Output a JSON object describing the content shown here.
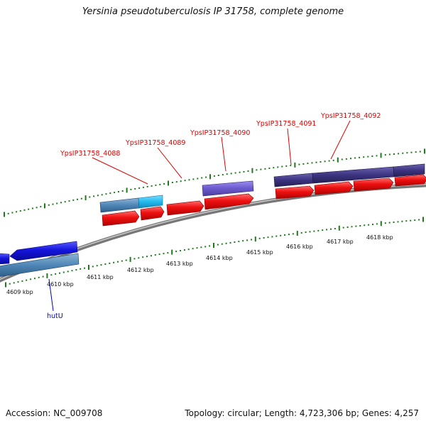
{
  "title": "Yersinia pseudotuberculosis IP 31758, complete genome",
  "footer": {
    "accession": "Accession: NC_009708",
    "stats": "Topology: circular; Length: 4,723,306 bp; Genes: 4,257"
  },
  "colors": {
    "backbone": "#8a8a8a",
    "tick": "#1d7a1d",
    "gene_red": "#ee1111",
    "gene_blue": "#1515dd",
    "gene_steel": "#4f86b6",
    "gene_cyan": "#22bbee",
    "gene_violet": "#6a5acd",
    "gene_indigo": "#3c3480",
    "label_red": "#dd0000",
    "label_blue": "#0000cc"
  },
  "scale": {
    "ticks": [
      {
        "label": "4609 kbp"
      },
      {
        "label": "4610 kbp"
      },
      {
        "label": "4611 kbp"
      },
      {
        "label": "4612 kbp"
      },
      {
        "label": "4613 kbp"
      },
      {
        "label": "4614 kbp"
      },
      {
        "label": "4615 kbp"
      },
      {
        "label": "4616 kbp"
      },
      {
        "label": "4617 kbp"
      },
      {
        "label": "4618 kbp"
      }
    ]
  },
  "gene_labels": [
    {
      "name": "YpsIP31758_4088",
      "color": "red"
    },
    {
      "name": "YpsIP31758_4089",
      "color": "red"
    },
    {
      "name": "YpsIP31758_4090",
      "color": "red"
    },
    {
      "name": "YpsIP31758_4091",
      "color": "red"
    },
    {
      "name": "YpsIP31758_4092",
      "color": "red"
    },
    {
      "name": "hutU",
      "color": "blue"
    }
  ]
}
